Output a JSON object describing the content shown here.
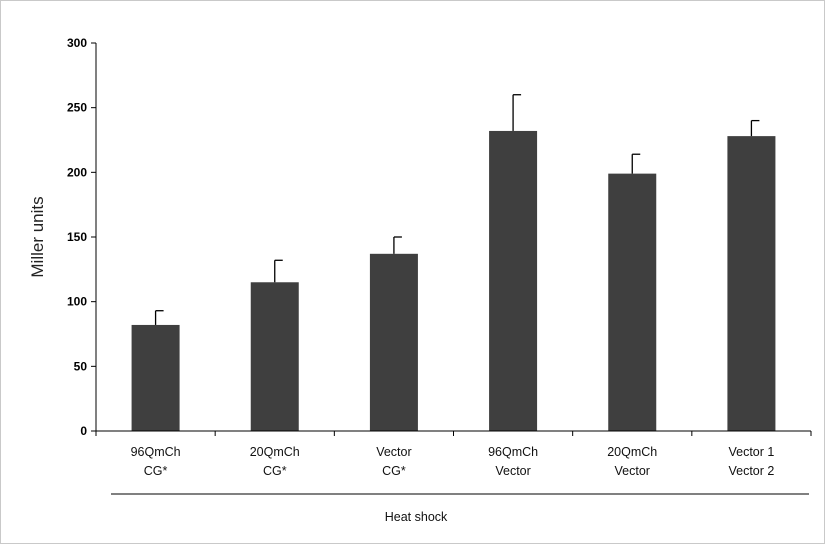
{
  "chart_data": {
    "type": "bar",
    "categories": [
      [
        "96QmCh",
        "CG*"
      ],
      [
        "20QmCh",
        "CG*"
      ],
      [
        "Vector",
        "CG*"
      ],
      [
        "96QmCh",
        "Vector"
      ],
      [
        "20QmCh",
        "Vector"
      ],
      [
        "Vector 1",
        "Vector 2"
      ]
    ],
    "values": [
      82,
      115,
      137,
      232,
      199,
      228
    ],
    "errors": [
      11,
      17,
      13,
      28,
      15,
      12
    ],
    "ylabel": "Miller units",
    "xlabel": "",
    "group_label": "Heat shock",
    "ylim": [
      0,
      300
    ],
    "yticks": [
      0,
      50,
      100,
      150,
      200,
      250,
      300
    ],
    "grid": false,
    "legend": "none",
    "bar_color": "#3f3f3f"
  }
}
